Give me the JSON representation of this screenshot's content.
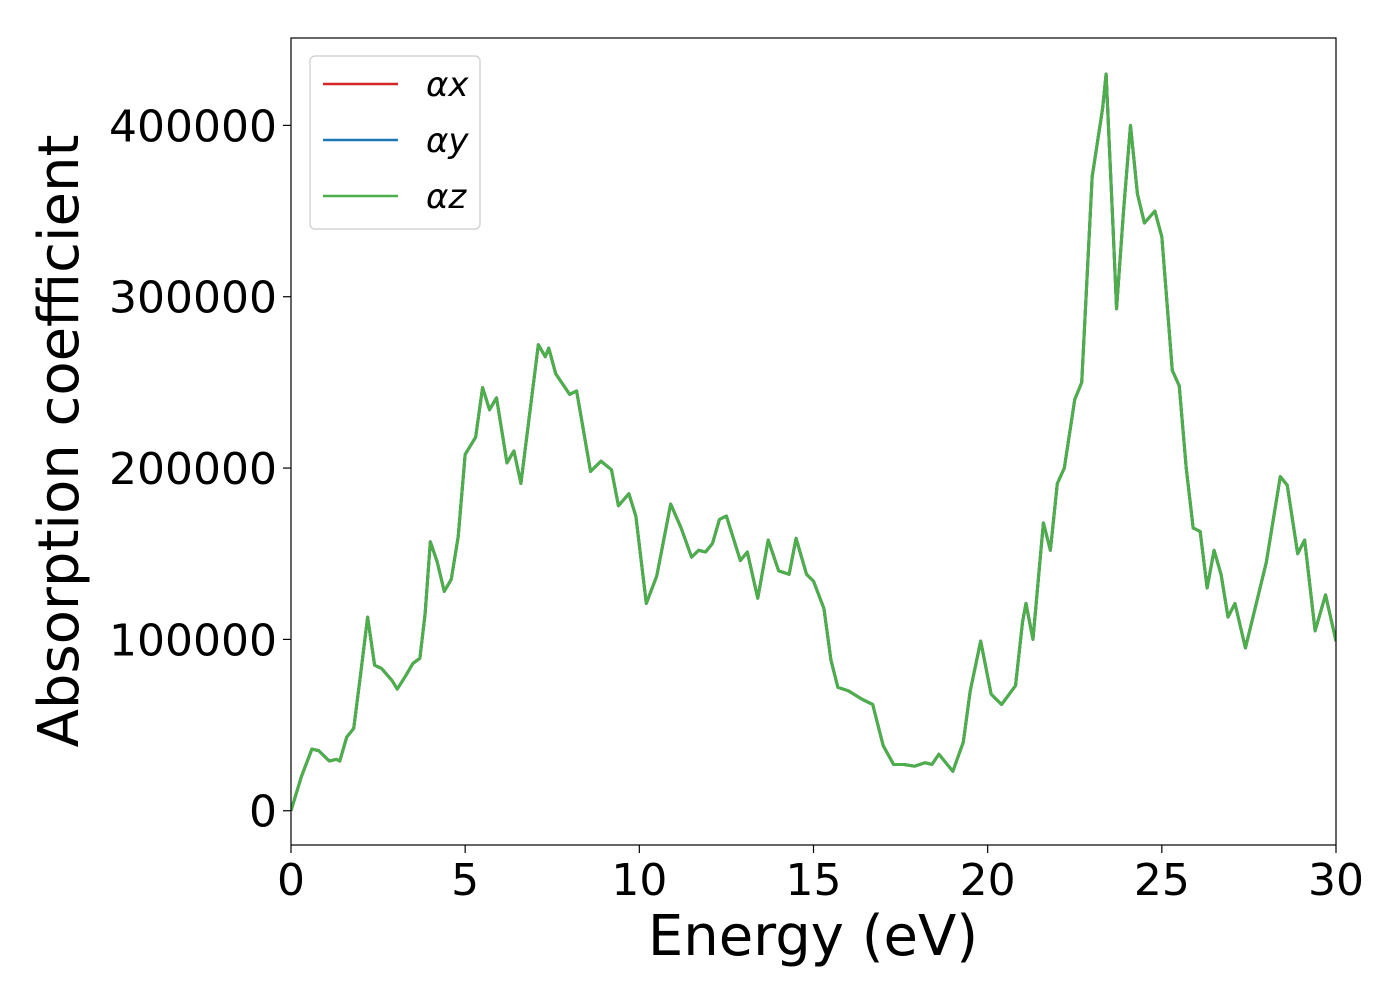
{
  "chart_data": {
    "type": "line",
    "xlabel": "Energy (eV)",
    "ylabel": "Absorption coefficient",
    "xlim": [
      0,
      30
    ],
    "ylim": [
      -20000,
      451000
    ],
    "xticks": [
      0,
      5,
      10,
      15,
      20,
      25,
      30
    ],
    "yticks": [
      0,
      100000,
      200000,
      300000,
      400000
    ],
    "legend": "upper left",
    "grid": false,
    "x": [
      0,
      0.3,
      0.6,
      0.8,
      1.1,
      1.3,
      1.4,
      1.6,
      1.8,
      2.0,
      2.2,
      2.4,
      2.6,
      2.9,
      3.05,
      3.3,
      3.5,
      3.7,
      3.85,
      4.0,
      4.2,
      4.4,
      4.6,
      4.8,
      5.0,
      5.3,
      5.5,
      5.7,
      5.9,
      6.2,
      6.4,
      6.6,
      7.1,
      7.3,
      7.4,
      7.6,
      8.0,
      8.2,
      8.6,
      8.9,
      9.2,
      9.4,
      9.7,
      9.9,
      10.2,
      10.5,
      10.9,
      11.2,
      11.5,
      11.7,
      11.9,
      12.1,
      12.3,
      12.5,
      12.9,
      13.1,
      13.4,
      13.7,
      14.0,
      14.3,
      14.5,
      14.8,
      15.0,
      15.3,
      15.5,
      15.7,
      16.0,
      16.4,
      16.7,
      17.0,
      17.3,
      17.6,
      17.9,
      18.2,
      18.4,
      18.6,
      19.0,
      19.3,
      19.5,
      19.8,
      20.1,
      20.4,
      20.8,
      21.0,
      21.1,
      21.3,
      21.6,
      21.8,
      22.0,
      22.2,
      22.5,
      22.7,
      23.0,
      23.3,
      23.4,
      23.6,
      23.7,
      23.9,
      24.1,
      24.3,
      24.5,
      24.8,
      25.0,
      25.3,
      25.5,
      25.7,
      25.9,
      26.1,
      26.3,
      26.5,
      26.7,
      26.9,
      27.1,
      27.4,
      27.7,
      28.0,
      28.4,
      28.6,
      28.9,
      29.1,
      29.4,
      29.7,
      30.0
    ],
    "series": [
      {
        "name": "αx",
        "color": "#d62728",
        "values": [
          0,
          20000,
          36000,
          35000,
          29000,
          30000,
          29000,
          43000,
          48000,
          80000,
          113000,
          85000,
          83000,
          76000,
          71000,
          79000,
          86000,
          89000,
          115000,
          157000,
          145000,
          128000,
          135000,
          160000,
          208000,
          218000,
          247000,
          234000,
          241000,
          203000,
          210000,
          191000,
          272000,
          265000,
          270000,
          255000,
          243000,
          245000,
          198000,
          204000,
          199000,
          178000,
          185000,
          172000,
          121000,
          137000,
          179000,
          165000,
          148000,
          152000,
          151000,
          156000,
          170000,
          172000,
          146000,
          151000,
          124000,
          158000,
          140000,
          138000,
          159000,
          138000,
          134000,
          118000,
          88000,
          72000,
          70000,
          65000,
          62000,
          38000,
          27000,
          27000,
          26000,
          28000,
          27000,
          33000,
          23000,
          40000,
          70000,
          99000,
          68000,
          62000,
          73000,
          110000,
          121000,
          100000,
          168000,
          152000,
          191000,
          200000,
          240000,
          250000,
          370000,
          410000,
          430000,
          340000,
          293000,
          350000,
          400000,
          360000,
          343000,
          350000,
          335000,
          257000,
          248000,
          200000,
          165000,
          163000,
          130000,
          152000,
          138000,
          113000,
          121000,
          95000,
          120000,
          145000,
          195000,
          190000,
          150000,
          158000,
          105000,
          126000,
          99000
        ]
      },
      {
        "name": "αy",
        "color": "#1f77b4",
        "values": [
          0,
          20000,
          36000,
          35000,
          29000,
          30000,
          29000,
          43000,
          48000,
          80000,
          113000,
          85000,
          83000,
          76000,
          71000,
          79000,
          86000,
          89000,
          115000,
          157000,
          145000,
          128000,
          135000,
          160000,
          208000,
          218000,
          247000,
          234000,
          241000,
          203000,
          210000,
          191000,
          272000,
          265000,
          270000,
          255000,
          243000,
          245000,
          198000,
          204000,
          199000,
          178000,
          185000,
          172000,
          121000,
          137000,
          179000,
          165000,
          148000,
          152000,
          151000,
          156000,
          170000,
          172000,
          146000,
          151000,
          124000,
          158000,
          140000,
          138000,
          159000,
          138000,
          134000,
          118000,
          88000,
          72000,
          70000,
          65000,
          62000,
          38000,
          27000,
          27000,
          26000,
          28000,
          27000,
          33000,
          23000,
          40000,
          70000,
          99000,
          68000,
          62000,
          73000,
          110000,
          121000,
          100000,
          168000,
          152000,
          191000,
          200000,
          240000,
          250000,
          370000,
          410000,
          430000,
          340000,
          293000,
          350000,
          400000,
          360000,
          343000,
          350000,
          335000,
          257000,
          248000,
          200000,
          165000,
          163000,
          130000,
          152000,
          138000,
          113000,
          121000,
          95000,
          120000,
          145000,
          195000,
          190000,
          150000,
          158000,
          105000,
          126000,
          99000
        ]
      },
      {
        "name": "αz",
        "color": "#4daf4a",
        "values": [
          0,
          20000,
          36000,
          35000,
          29000,
          30000,
          29000,
          43000,
          48000,
          80000,
          113000,
          85000,
          83000,
          76000,
          71000,
          79000,
          86000,
          89000,
          115000,
          157000,
          145000,
          128000,
          135000,
          160000,
          208000,
          218000,
          247000,
          234000,
          241000,
          203000,
          210000,
          191000,
          272000,
          265000,
          270000,
          255000,
          243000,
          245000,
          198000,
          204000,
          199000,
          178000,
          185000,
          172000,
          121000,
          137000,
          179000,
          165000,
          148000,
          152000,
          151000,
          156000,
          170000,
          172000,
          146000,
          151000,
          124000,
          158000,
          140000,
          138000,
          159000,
          138000,
          134000,
          118000,
          88000,
          72000,
          70000,
          65000,
          62000,
          38000,
          27000,
          27000,
          26000,
          28000,
          27000,
          33000,
          23000,
          40000,
          70000,
          99000,
          68000,
          62000,
          73000,
          110000,
          121000,
          100000,
          168000,
          152000,
          191000,
          200000,
          240000,
          250000,
          370000,
          410000,
          430000,
          340000,
          293000,
          350000,
          400000,
          360000,
          343000,
          350000,
          335000,
          257000,
          248000,
          200000,
          165000,
          163000,
          130000,
          152000,
          138000,
          113000,
          121000,
          95000,
          120000,
          145000,
          195000,
          190000,
          150000,
          158000,
          105000,
          126000,
          99000
        ]
      }
    ]
  }
}
